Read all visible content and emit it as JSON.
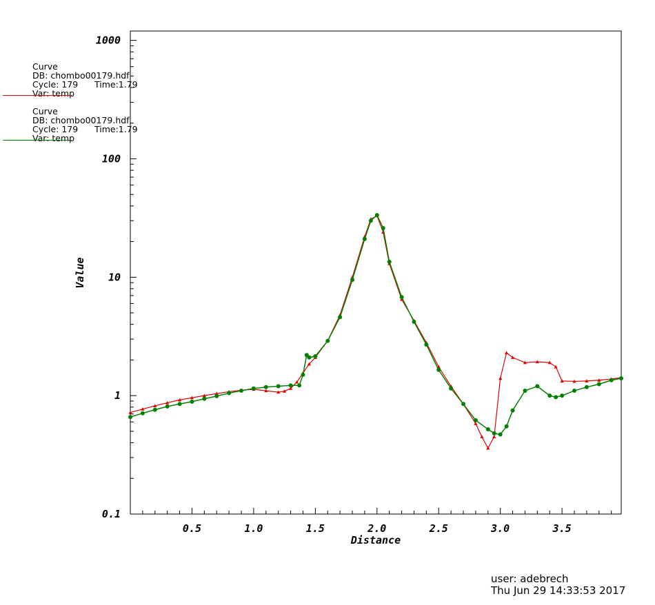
{
  "legend": [
    {
      "title": "Curve",
      "db": "DB: chombo00179.hdf",
      "cycle": "Cycle: 179",
      "time": "Time:1.79",
      "var": "Var: temp",
      "color": "#e00000"
    },
    {
      "title": "Curve",
      "db": "DB: chombo00179.hdf",
      "cycle": "Cycle: 179",
      "time": "Time:1.79",
      "var": "Var: temp",
      "color": "#008000"
    }
  ],
  "footer": {
    "user": "user: adebrech",
    "date": "Thu Jun 29 14:33:53 2017"
  },
  "chart_data": {
    "type": "line",
    "xlabel": "Distance",
    "ylabel": "Value",
    "xlim": [
      0,
      3.98
    ],
    "ylim": [
      0.1,
      1200
    ],
    "yscale": "log",
    "xticks": [
      0.5,
      1.0,
      1.5,
      2.0,
      2.5,
      3.0,
      3.5
    ],
    "xtick_labels": [
      "0.5",
      "1.0",
      "1.5",
      "2.0",
      "2.5",
      "3.0",
      "3.5"
    ],
    "yticks": [
      0.1,
      1,
      10,
      100,
      1000
    ],
    "ytick_labels": [
      "0.1",
      "1",
      "10",
      "100",
      "1000"
    ],
    "grid": false,
    "series": [
      {
        "color": "#e00000",
        "marker": "triangle",
        "x": [
          0,
          0.1,
          0.2,
          0.3,
          0.4,
          0.5,
          0.6,
          0.7,
          0.8,
          0.9,
          1.0,
          1.1,
          1.2,
          1.25,
          1.3,
          1.35,
          1.4,
          1.45,
          1.5,
          1.6,
          1.7,
          1.8,
          1.9,
          1.95,
          2.0,
          2.05,
          2.1,
          2.2,
          2.3,
          2.4,
          2.5,
          2.6,
          2.7,
          2.8,
          2.85,
          2.9,
          2.95,
          3.0,
          3.05,
          3.1,
          3.2,
          3.3,
          3.4,
          3.45,
          3.5,
          3.6,
          3.7,
          3.8,
          3.9,
          3.98
        ],
        "y": [
          0.72,
          0.77,
          0.82,
          0.87,
          0.92,
          0.96,
          1.0,
          1.04,
          1.08,
          1.11,
          1.13,
          1.1,
          1.07,
          1.09,
          1.15,
          1.3,
          1.55,
          1.85,
          2.1,
          2.9,
          4.8,
          10.0,
          22.0,
          31.0,
          33.0,
          24.0,
          13.0,
          6.5,
          4.3,
          2.8,
          1.75,
          1.2,
          0.85,
          0.58,
          0.45,
          0.36,
          0.45,
          1.4,
          2.3,
          2.1,
          1.9,
          1.93,
          1.9,
          1.75,
          1.33,
          1.32,
          1.33,
          1.35,
          1.38,
          1.42
        ]
      },
      {
        "color": "#008000",
        "marker": "circle",
        "x": [
          0,
          0.1,
          0.2,
          0.3,
          0.4,
          0.5,
          0.6,
          0.7,
          0.8,
          0.9,
          1.0,
          1.1,
          1.2,
          1.3,
          1.37,
          1.4,
          1.43,
          1.45,
          1.5,
          1.6,
          1.7,
          1.8,
          1.9,
          1.95,
          2.0,
          2.05,
          2.1,
          2.2,
          2.3,
          2.4,
          2.5,
          2.6,
          2.7,
          2.8,
          2.9,
          2.95,
          3.0,
          3.05,
          3.1,
          3.2,
          3.3,
          3.4,
          3.45,
          3.5,
          3.6,
          3.7,
          3.8,
          3.9,
          3.98
        ],
        "y": [
          0.66,
          0.71,
          0.76,
          0.81,
          0.85,
          0.89,
          0.94,
          0.99,
          1.05,
          1.1,
          1.15,
          1.18,
          1.2,
          1.22,
          1.22,
          1.5,
          2.2,
          2.1,
          2.15,
          2.9,
          4.6,
          9.5,
          21.0,
          30.0,
          33.5,
          26.0,
          13.5,
          6.8,
          4.2,
          2.7,
          1.65,
          1.15,
          0.85,
          0.62,
          0.52,
          0.48,
          0.47,
          0.55,
          0.75,
          1.1,
          1.2,
          1.0,
          0.97,
          1.0,
          1.1,
          1.18,
          1.25,
          1.35,
          1.4
        ]
      }
    ]
  }
}
